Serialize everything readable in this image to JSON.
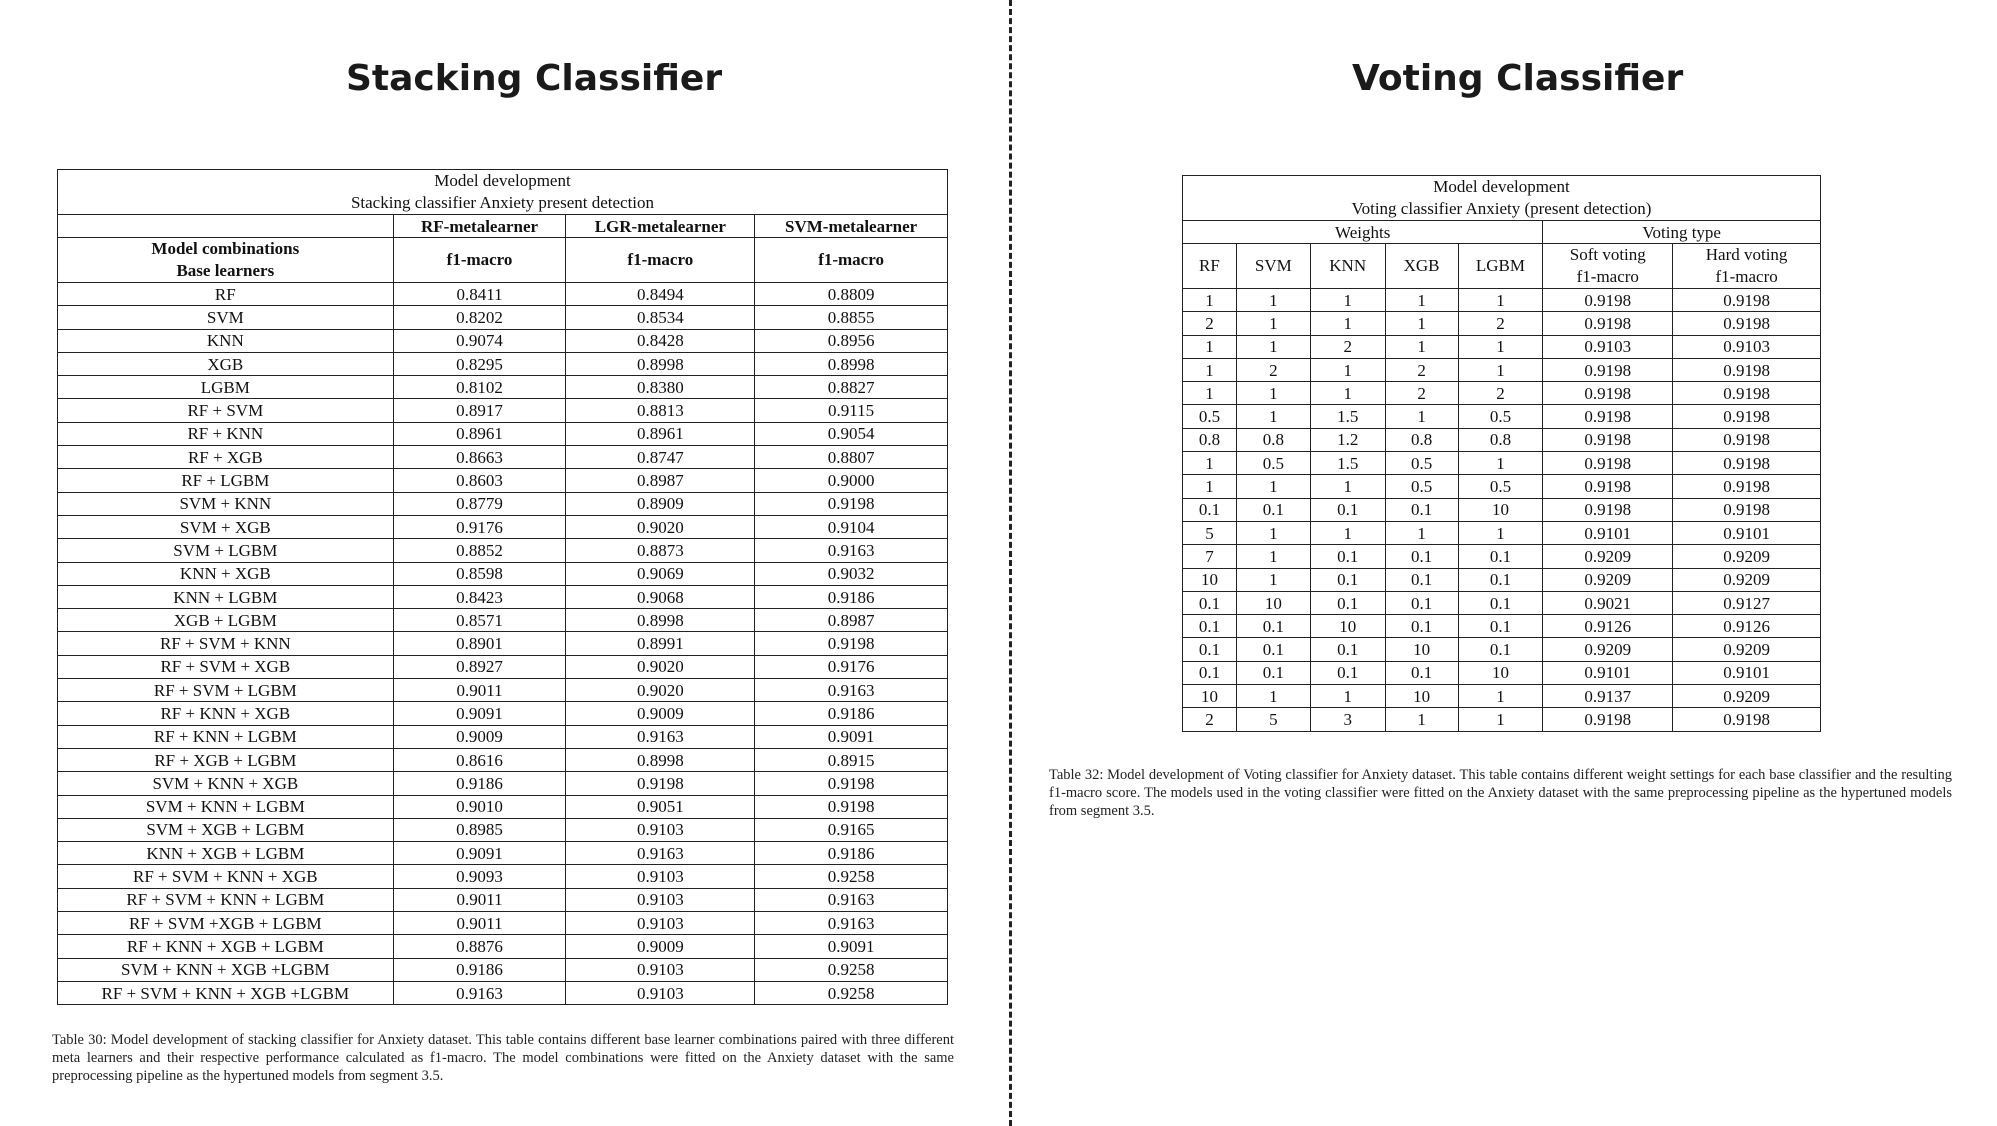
{
  "left_panel": {
    "title": "Stacking Classifier",
    "table": {
      "title_line1": "Model development",
      "title_line2": "Stacking classifier Anxiety present detection",
      "meta_headers": [
        "RF-metalearner",
        "LGR-metalearner",
        "SVM-metalearner"
      ],
      "row_header_line1": "Model combinations",
      "row_header_line2": "Base learners",
      "metric_headers": [
        "f1-macro",
        "f1-macro",
        "f1-macro"
      ],
      "rows": [
        [
          "RF",
          "0.8411",
          "0.8494",
          "0.8809"
        ],
        [
          "SVM",
          "0.8202",
          "0.8534",
          "0.8855"
        ],
        [
          "KNN",
          "0.9074",
          "0.8428",
          "0.8956"
        ],
        [
          "XGB",
          "0.8295",
          "0.8998",
          "0.8998"
        ],
        [
          "LGBM",
          "0.8102",
          "0.8380",
          "0.8827"
        ],
        [
          "RF + SVM",
          "0.8917",
          "0.8813",
          "0.9115"
        ],
        [
          "RF + KNN",
          "0.8961",
          "0.8961",
          "0.9054"
        ],
        [
          "RF + XGB",
          "0.8663",
          "0.8747",
          "0.8807"
        ],
        [
          "RF + LGBM",
          "0.8603",
          "0.8987",
          "0.9000"
        ],
        [
          "SVM + KNN",
          "0.8779",
          "0.8909",
          "0.9198"
        ],
        [
          "SVM + XGB",
          "0.9176",
          "0.9020",
          "0.9104"
        ],
        [
          "SVM + LGBM",
          "0.8852",
          "0.8873",
          "0.9163"
        ],
        [
          "KNN + XGB",
          "0.8598",
          "0.9069",
          "0.9032"
        ],
        [
          "KNN + LGBM",
          "0.8423",
          "0.9068",
          "0.9186"
        ],
        [
          "XGB + LGBM",
          "0.8571",
          "0.8998",
          "0.8987"
        ],
        [
          "RF + SVM + KNN",
          "0.8901",
          "0.8991",
          "0.9198"
        ],
        [
          "RF + SVM + XGB",
          "0.8927",
          "0.9020",
          "0.9176"
        ],
        [
          "RF + SVM + LGBM",
          "0.9011",
          "0.9020",
          "0.9163"
        ],
        [
          "RF + KNN + XGB",
          "0.9091",
          "0.9009",
          "0.9186"
        ],
        [
          "RF + KNN + LGBM",
          "0.9009",
          "0.9163",
          "0.9091"
        ],
        [
          "RF + XGB + LGBM",
          "0.8616",
          "0.8998",
          "0.8915"
        ],
        [
          "SVM + KNN + XGB",
          "0.9186",
          "0.9198",
          "0.9198"
        ],
        [
          "SVM + KNN + LGBM",
          "0.9010",
          "0.9051",
          "0.9198"
        ],
        [
          "SVM + XGB + LGBM",
          "0.8985",
          "0.9103",
          "0.9165"
        ],
        [
          "KNN + XGB + LGBM",
          "0.9091",
          "0.9163",
          "0.9186"
        ],
        [
          "RF + SVM + KNN + XGB",
          "0.9093",
          "0.9103",
          "0.9258"
        ],
        [
          "RF + SVM + KNN + LGBM",
          "0.9011",
          "0.9103",
          "0.9163"
        ],
        [
          "RF + SVM +XGB + LGBM",
          "0.9011",
          "0.9103",
          "0.9163"
        ],
        [
          "RF + KNN + XGB + LGBM",
          "0.8876",
          "0.9009",
          "0.9091"
        ],
        [
          "SVM + KNN + XGB +LGBM",
          "0.9186",
          "0.9103",
          "0.9258"
        ],
        [
          "RF + SVM + KNN + XGB +LGBM",
          "0.9163",
          "0.9103",
          "0.9258"
        ]
      ]
    },
    "caption": "Table 30: Model development of stacking classifier for Anxiety dataset. This table contains different base learner combinations paired with three different meta learners and their respective performance calculated as f1-macro. The model combinations were fitted on the Anxiety dataset with the same preprocessing pipeline as the hypertuned models from segment 3.5."
  },
  "right_panel": {
    "title": "Voting Classifier",
    "table": {
      "title_line1": "Model development",
      "title_line2": "Voting classifier Anxiety (present detection)",
      "group_headers": [
        "Weights",
        "Voting type"
      ],
      "weight_headers": [
        "RF",
        "SVM",
        "KNN",
        "XGB",
        "LGBM"
      ],
      "voting_header1_line1": "Soft voting",
      "voting_header1_line2": "f1-macro",
      "voting_header2_line1": "Hard voting",
      "voting_header2_line2": "f1-macro",
      "rows": [
        [
          "1",
          "1",
          "1",
          "1",
          "1",
          "0.9198",
          "0.9198"
        ],
        [
          "2",
          "1",
          "1",
          "1",
          "2",
          "0.9198",
          "0.9198"
        ],
        [
          "1",
          "1",
          "2",
          "1",
          "1",
          "0.9103",
          "0.9103"
        ],
        [
          "1",
          "2",
          "1",
          "2",
          "1",
          "0.9198",
          "0.9198"
        ],
        [
          "1",
          "1",
          "1",
          "2",
          "2",
          "0.9198",
          "0.9198"
        ],
        [
          "0.5",
          "1",
          "1.5",
          "1",
          "0.5",
          "0.9198",
          "0.9198"
        ],
        [
          "0.8",
          "0.8",
          "1.2",
          "0.8",
          "0.8",
          "0.9198",
          "0.9198"
        ],
        [
          "1",
          "0.5",
          "1.5",
          "0.5",
          "1",
          "0.9198",
          "0.9198"
        ],
        [
          "1",
          "1",
          "1",
          "0.5",
          "0.5",
          "0.9198",
          "0.9198"
        ],
        [
          "0.1",
          "0.1",
          "0.1",
          "0.1",
          "10",
          "0.9198",
          "0.9198"
        ],
        [
          "5",
          "1",
          "1",
          "1",
          "1",
          "0.9101",
          "0.9101"
        ],
        [
          "7",
          "1",
          "0.1",
          "0.1",
          "0.1",
          "0.9209",
          "0.9209"
        ],
        [
          "10",
          "1",
          "0.1",
          "0.1",
          "0.1",
          "0.9209",
          "0.9209"
        ],
        [
          "0.1",
          "10",
          "0.1",
          "0.1",
          "0.1",
          "0.9021",
          "0.9127"
        ],
        [
          "0.1",
          "0.1",
          "10",
          "0.1",
          "0.1",
          "0.9126",
          "0.9126"
        ],
        [
          "0.1",
          "0.1",
          "0.1",
          "10",
          "0.1",
          "0.9209",
          "0.9209"
        ],
        [
          "0.1",
          "0.1",
          "0.1",
          "0.1",
          "10",
          "0.9101",
          "0.9101"
        ],
        [
          "10",
          "1",
          "1",
          "10",
          "1",
          "0.9137",
          "0.9209"
        ],
        [
          "2",
          "5",
          "3",
          "1",
          "1",
          "0.9198",
          "0.9198"
        ]
      ]
    },
    "caption": "Table 32: Model development of Voting classifier for Anxiety dataset. This table contains different weight settings for each base classifier and the resulting f1-macro score. The models used in the voting classifier were fitted on the Anxiety dataset with the same preprocessing pipeline as the hypertuned models from segment 3.5."
  }
}
